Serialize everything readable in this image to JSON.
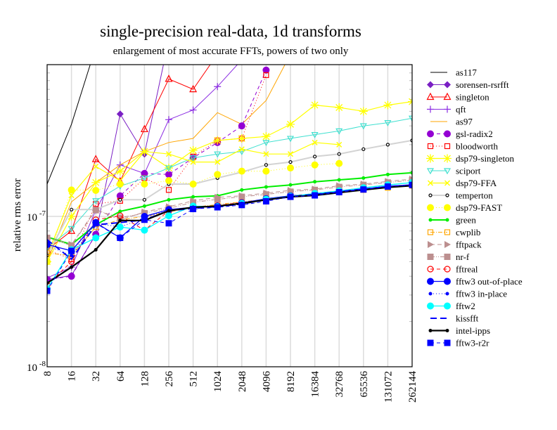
{
  "chart_data": {
    "type": "line",
    "title": "single-precision real-data, 1d transforms",
    "subtitle": "enlargement of most accurate FFTs, powers of two only",
    "xlabel": "",
    "ylabel": "relative rms error",
    "yscale": "log",
    "ylim": [
      1e-08,
      1e-06
    ],
    "ytick_labels": [
      {
        "value": 1e-07,
        "base": "10",
        "exp": "-7"
      },
      {
        "value": 1e-08,
        "base": "10",
        "exp": "-8"
      }
    ],
    "categories": [
      "8",
      "16",
      "32",
      "64",
      "128",
      "256",
      "512",
      "1024",
      "2048",
      "4096",
      "8192",
      "16384",
      "32768",
      "65536",
      "131072",
      "262144"
    ],
    "grid": true,
    "legend_position": "right",
    "series": [
      {
        "name": "as117",
        "color": "#000000",
        "dash": "",
        "marker": "none",
        "width": 1,
        "values": [
          1.64e-07,
          4.1e-07,
          1.34e-06,
          null,
          null,
          null,
          null,
          null,
          null,
          null,
          null,
          null,
          null,
          null,
          null,
          null
        ]
      },
      {
        "name": "sorensen-rsrfft",
        "color": "#7a1fc4",
        "dash": "",
        "marker": "diamond",
        "width": 1,
        "values": [
          3.8e-08,
          4.05e-08,
          7.6e-08,
          4.8e-07,
          2.6e-07,
          1.5e-06,
          null,
          null,
          null,
          null,
          null,
          null,
          null,
          null,
          null,
          null
        ]
      },
      {
        "name": "singleton",
        "color": "#ff0000",
        "dash": "",
        "marker": "triangle-open",
        "width": 1,
        "values": [
          6e-08,
          8e-08,
          2.4e-07,
          1.71e-07,
          3.8e-07,
          8.2e-07,
          7e-07,
          1.2e-06,
          null,
          null,
          null,
          null,
          null,
          null,
          null,
          null
        ]
      },
      {
        "name": "qft",
        "color": "#8a2be2",
        "dash": "",
        "marker": "plus",
        "width": 1,
        "values": [
          3.9e-08,
          4.6e-08,
          1.1e-07,
          2.2e-07,
          1.93e-07,
          4.4e-07,
          5.1e-07,
          7.3e-07,
          1.1e-06,
          null,
          null,
          null,
          null,
          null,
          null,
          null
        ]
      },
      {
        "name": "as97",
        "color": "#ffa500",
        "dash": "",
        "marker": "none",
        "width": 1,
        "values": [
          5e-08,
          1.25e-07,
          1.68e-07,
          2.2e-07,
          2.7e-07,
          3.1e-07,
          3.3e-07,
          4.9e-07,
          4.1e-07,
          5.9e-07,
          1.2e-06,
          null,
          null,
          null,
          null,
          null
        ]
      },
      {
        "name": "gsl-radix2",
        "color": "#9400d3",
        "dash": "5,4",
        "marker": "circle",
        "width": 1,
        "values": [
          3.8e-08,
          4e-08,
          7.6e-08,
          1.37e-07,
          1.93e-07,
          1.9e-07,
          2.45e-07,
          3.1e-07,
          4e-07,
          9.4e-07,
          null,
          null,
          null,
          null,
          null,
          null
        ]
      },
      {
        "name": "bloodworth",
        "color": "#ff0000",
        "dash": "1,3",
        "marker": "square-open",
        "width": 1,
        "values": [
          6e-08,
          5.2e-08,
          1.21e-07,
          1.27e-07,
          1.8e-07,
          1.5e-07,
          2.5e-07,
          3.2e-07,
          3.3e-07,
          8.7e-07,
          null,
          null,
          null,
          null,
          null,
          null
        ]
      },
      {
        "name": "dsp79-singleton",
        "color": "#ffff00",
        "dash": "",
        "marker": "asterisk",
        "width": 1.2,
        "values": [
          5e-08,
          1e-07,
          1.68e-07,
          2e-07,
          2.7e-07,
          2.1e-07,
          2.75e-07,
          3.2e-07,
          3.3e-07,
          3.4e-07,
          4.1e-07,
          5.5e-07,
          5.3e-07,
          5e-07,
          5.5e-07,
          5.8e-07
        ]
      },
      {
        "name": "sciport",
        "color": "#40e0d0",
        "dash": "",
        "marker": "triangle-down-open",
        "width": 1,
        "values": [
          6.2e-08,
          8.3e-08,
          1.27e-07,
          1.59e-07,
          1.8e-07,
          2.1e-07,
          2.45e-07,
          2.6e-07,
          2.7e-07,
          3.1e-07,
          3.3e-07,
          3.5e-07,
          3.7e-07,
          4e-07,
          4.2e-07,
          4.5e-07
        ]
      },
      {
        "name": "dsp79-FFA",
        "color": "#ffff00",
        "dash": "",
        "marker": "x",
        "width": 1.2,
        "values": [
          5.5e-08,
          1.38e-07,
          2.15e-07,
          1.73e-07,
          2.7e-07,
          2.6e-07,
          2.3e-07,
          2.3e-07,
          2.8e-07,
          2.6e-07,
          2.6e-07,
          3.1e-07,
          3e-07,
          null,
          null,
          null
        ]
      },
      {
        "name": "temperton",
        "color": "#d3d3d3",
        "dash": "",
        "marker": "small-circle-open",
        "width": 2,
        "values": [
          5.5e-08,
          1.11e-07,
          1.11e-07,
          1.29e-07,
          1.29e-07,
          1.64e-07,
          1.64e-07,
          1.8e-07,
          1.97e-07,
          2.2e-07,
          2.3e-07,
          2.5e-07,
          2.6e-07,
          2.8e-07,
          3e-07,
          3.2e-07
        ]
      },
      {
        "name": "dsp79-FAST",
        "color": "#ffff00",
        "dash": "1,3",
        "marker": "circle",
        "width": 1,
        "values": [
          5e-08,
          1.5e-07,
          1.49e-07,
          1.64e-07,
          1.64e-07,
          1.73e-07,
          1.64e-07,
          1.9e-07,
          2e-07,
          2e-07,
          2.1e-07,
          2.2e-07,
          2.25e-07,
          null,
          null,
          null
        ]
      },
      {
        "name": "green",
        "color": "#00ee00",
        "dash": "",
        "marker": "small-dot",
        "width": 2,
        "values": [
          7.3e-08,
          6.5e-08,
          8.8e-08,
          1.08e-07,
          1.17e-07,
          1.29e-07,
          1.35e-07,
          1.37e-07,
          1.5e-07,
          1.57e-07,
          1.62e-07,
          1.7e-07,
          1.75e-07,
          1.8e-07,
          1.9e-07,
          1.95e-07
        ]
      },
      {
        "name": "cwplib",
        "color": "#ffa500",
        "dash": "6,2,1,2",
        "marker": "square-open",
        "width": 1,
        "values": [
          5.7e-08,
          5.5e-08,
          8.5e-08,
          9.5e-08,
          1e-07,
          1.07e-07,
          1.15e-07,
          1.2e-07,
          1.25e-07,
          1.3e-07,
          1.35e-07,
          1.4e-07,
          1.45e-07,
          1.5e-07,
          1.55e-07,
          1.6e-07
        ]
      },
      {
        "name": "fftpack",
        "color": "#bc8f8f",
        "dash": "6,4",
        "marker": "triangle-right",
        "width": 1,
        "values": [
          7.3e-08,
          6.5e-08,
          1.11e-07,
          9.5e-08,
          1.07e-07,
          1.16e-07,
          1.27e-07,
          1.34e-07,
          1.37e-07,
          1.43e-07,
          1.49e-07,
          1.52e-07,
          1.6e-07,
          1.64e-07,
          1.71e-07,
          1.77e-07
        ]
      },
      {
        "name": "nr-f",
        "color": "#bc8f8f",
        "dash": "6,2,1,2,1,2",
        "marker": "square",
        "width": 1,
        "values": [
          7.2e-08,
          6.4e-08,
          1.1e-07,
          9.8e-08,
          1.05e-07,
          1.13e-07,
          1.24e-07,
          1.3e-07,
          1.35e-07,
          1.4e-07,
          1.46e-07,
          1.5e-07,
          1.57e-07,
          1.62e-07,
          1.68e-07,
          1.74e-07
        ]
      },
      {
        "name": "fftreal",
        "color": "#ff0000",
        "dash": "5,4",
        "marker": "circle-open",
        "width": 1,
        "values": [
          3.5e-08,
          5e-08,
          9.5e-08,
          1.01e-07,
          8.1e-08,
          1.09e-07,
          1.15e-07,
          1.18e-07,
          1.24e-07,
          1.3e-07,
          1.37e-07,
          1.42e-07,
          1.48e-07,
          1.55e-07,
          1.62e-07,
          1.68e-07
        ]
      },
      {
        "name": "fftw3 out-of-place",
        "color": "#0000ff",
        "dash": "",
        "marker": "circle",
        "width": 1.3,
        "values": [
          6.5e-08,
          5.9e-08,
          9.1e-08,
          7.2e-08,
          1e-07,
          1.11e-07,
          1.15e-07,
          1.17e-07,
          1.23e-07,
          1.31e-07,
          1.37e-07,
          1.4e-07,
          1.46e-07,
          1.52e-07,
          1.59e-07,
          1.62e-07
        ]
      },
      {
        "name": "fftw3 in-place",
        "color": "#0000ff",
        "dash": "1,3",
        "marker": "small-dot",
        "width": 1,
        "values": [
          6.4e-08,
          5.5e-08,
          9e-08,
          8.5e-08,
          9.8e-08,
          1.1e-07,
          1.14e-07,
          1.16e-07,
          1.22e-07,
          1.3e-07,
          1.36e-07,
          1.4e-07,
          1.45e-07,
          1.51e-07,
          1.58e-07,
          1.62e-07
        ]
      },
      {
        "name": "fftw2",
        "color": "#00ffff",
        "dash": "",
        "marker": "circle",
        "width": 1.3,
        "values": [
          3.3e-08,
          6e-08,
          7.2e-08,
          8.5e-08,
          8.1e-08,
          1.01e-07,
          1.17e-07,
          1.16e-07,
          1.22e-07,
          1.3e-07,
          1.36e-07,
          1.42e-07,
          1.48e-07,
          1.55e-07,
          1.62e-07,
          1.68e-07
        ]
      },
      {
        "name": "kissfft",
        "color": "#0000ff",
        "dash": "9,5",
        "marker": "none",
        "width": 2,
        "values": [
          7e-08,
          5.2e-08,
          8.8e-08,
          9.1e-08,
          9.5e-08,
          1.09e-07,
          1.13e-07,
          1.16e-07,
          1.21e-07,
          1.29e-07,
          1.35e-07,
          1.4e-07,
          1.46e-07,
          1.52e-07,
          1.58e-07,
          1.62e-07
        ]
      },
      {
        "name": "intel-ipps",
        "color": "#000000",
        "dash": "",
        "marker": "small-dot",
        "width": 2.2,
        "values": [
          3.6e-08,
          4.6e-08,
          6e-08,
          9.4e-08,
          9.4e-08,
          1.09e-07,
          1.15e-07,
          1.17e-07,
          1.22e-07,
          1.29e-07,
          1.35e-07,
          1.38e-07,
          1.44e-07,
          1.5e-07,
          1.56e-07,
          1.6e-07
        ]
      },
      {
        "name": "fftw3-r2r",
        "color": "#0000ff",
        "dash": "5,4",
        "marker": "square",
        "width": 1,
        "values": [
          3.2e-08,
          5.9e-08,
          9e-08,
          7.2e-08,
          9.5e-08,
          9e-08,
          1.12e-07,
          1.15e-07,
          1.19e-07,
          1.26e-07,
          1.35e-07,
          1.38e-07,
          1.45e-07,
          1.51e-07,
          1.58e-07,
          1.62e-07
        ]
      }
    ]
  }
}
